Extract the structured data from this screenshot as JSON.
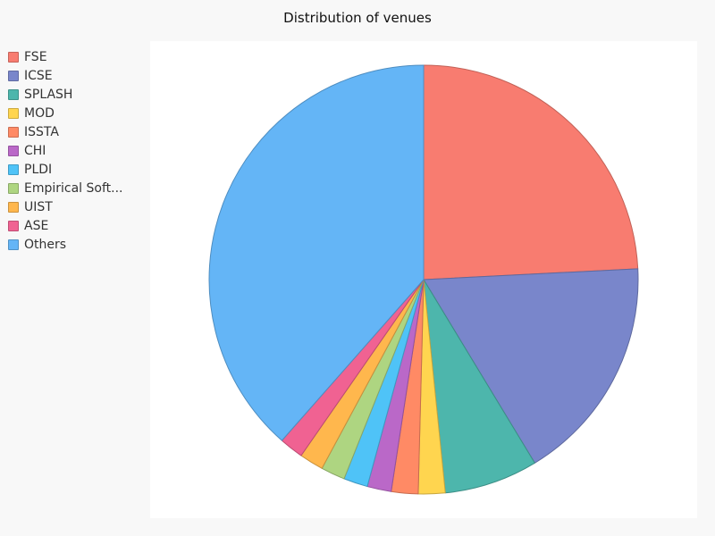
{
  "chart_data": {
    "type": "pie",
    "title": "Distribution of venues",
    "legend_position": "top-left",
    "slices": [
      {
        "label": "FSE",
        "display_label": "FSE",
        "value": 24,
        "color": "#F87C70"
      },
      {
        "label": "ICSE",
        "display_label": "ICSE",
        "value": 17,
        "color": "#7986CB"
      },
      {
        "label": "SPLASH",
        "display_label": "SPLASH",
        "value": 7,
        "color": "#4DB6AC"
      },
      {
        "label": "MOD",
        "display_label": "MOD",
        "value": 2,
        "color": "#FFD54F"
      },
      {
        "label": "ISSTA",
        "display_label": "ISSTA",
        "value": 2,
        "color": "#FF8A65"
      },
      {
        "label": "CHI",
        "display_label": "CHI",
        "value": 1.8,
        "color": "#BA68C8"
      },
      {
        "label": "PLDI",
        "display_label": "PLDI",
        "value": 1.8,
        "color": "#4FC3F7"
      },
      {
        "label": "Empirical Soft...",
        "display_label": "Empirical Soft...",
        "value": 1.8,
        "color": "#AED581"
      },
      {
        "label": "UIST",
        "display_label": "UIST",
        "value": 1.8,
        "color": "#FFB74D"
      },
      {
        "label": "ASE",
        "display_label": "ASE",
        "value": 1.8,
        "color": "#F06292"
      },
      {
        "label": "Others",
        "display_label": "Others",
        "value": 38.2,
        "color": "#64B5F6"
      }
    ]
  }
}
